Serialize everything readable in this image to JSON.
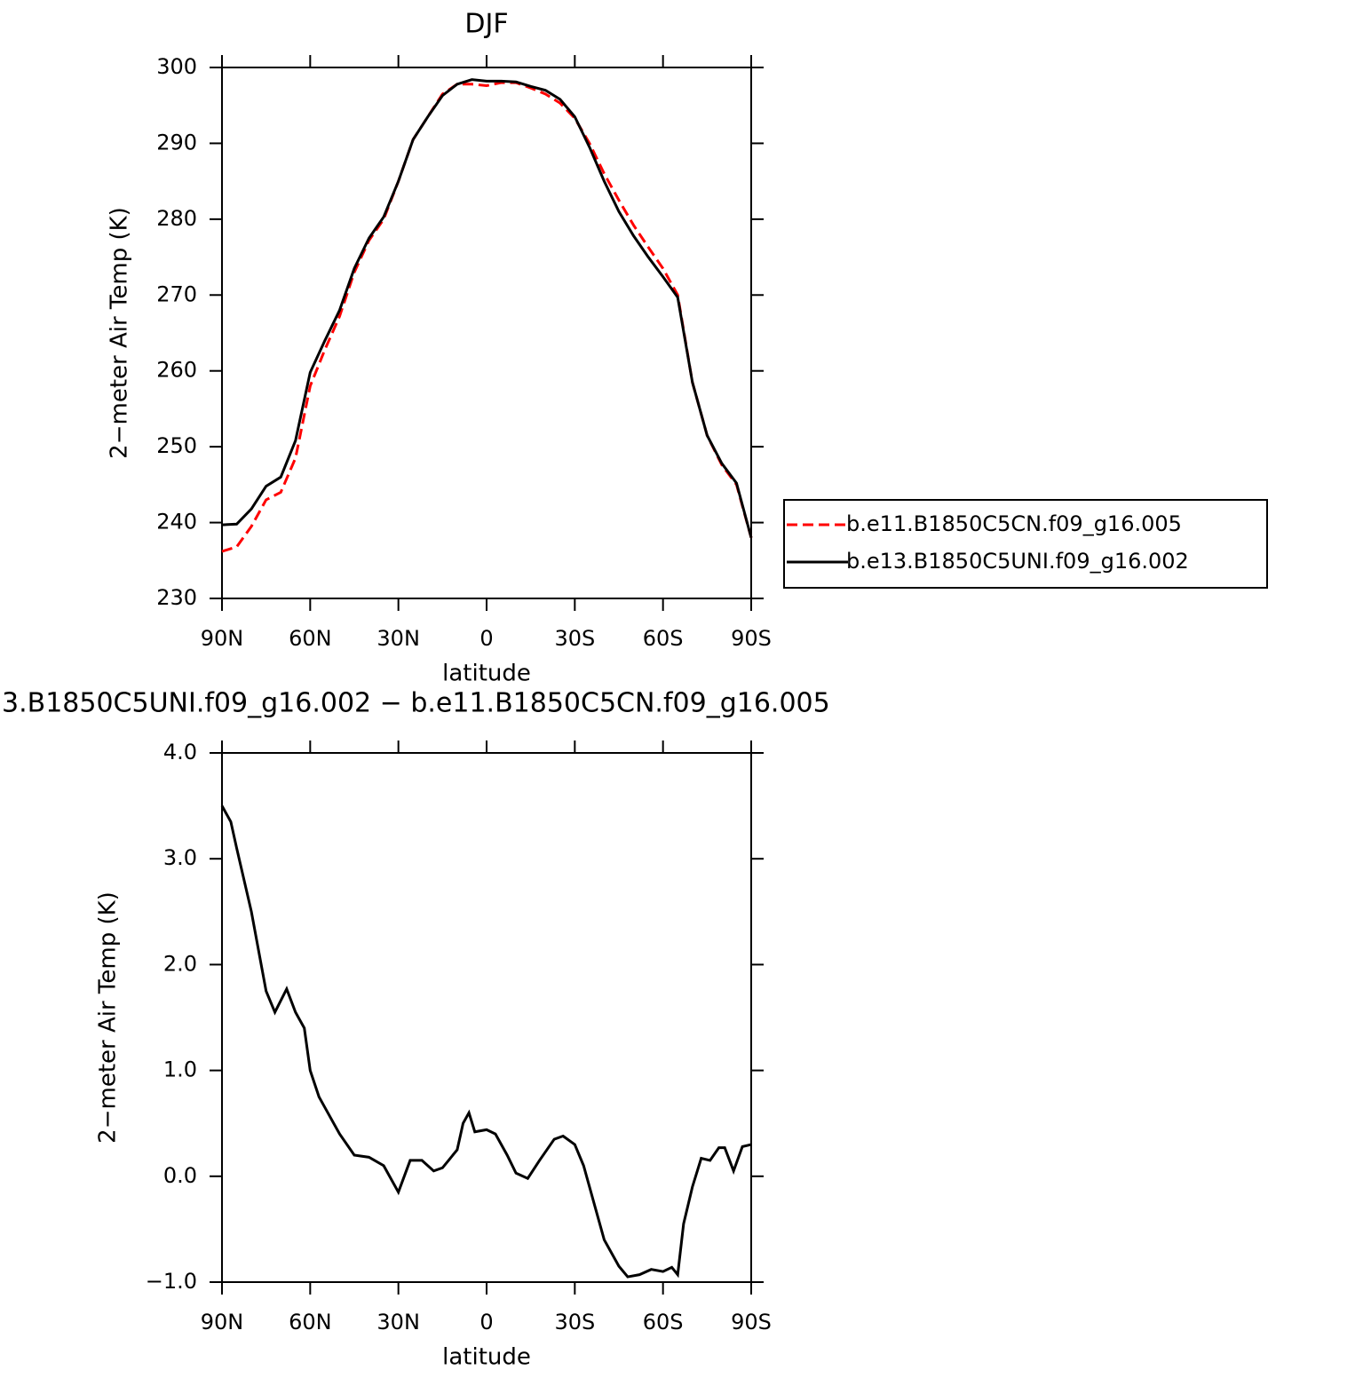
{
  "chart_data": [
    {
      "type": "line",
      "title": "DJF",
      "xlabel": "latitude",
      "ylabel": "2−meter Air Temp (K)",
      "x": [
        90,
        85,
        80,
        75,
        70,
        65,
        60,
        55,
        50,
        45,
        40,
        35,
        30,
        25,
        20,
        15,
        10,
        5,
        0,
        -5,
        -10,
        -15,
        -20,
        -25,
        -30,
        -35,
        -40,
        -45,
        -50,
        -55,
        -60,
        -65,
        -70,
        -75,
        -80,
        -85,
        -90
      ],
      "series": [
        {
          "name": "b.e11.B1850C5CN.f09_g16.005",
          "color": "#ff0000",
          "dash": true,
          "values": [
            236.2,
            236.8,
            239.5,
            243,
            244,
            248.5,
            258,
            262.8,
            267.2,
            273,
            277.2,
            280,
            285,
            290.5,
            293.5,
            296.5,
            297.8,
            297.8,
            297.6,
            298,
            298,
            297.3,
            296.5,
            295.3,
            293.3,
            290,
            286,
            282.5,
            279.2,
            276.3,
            273.5,
            270,
            258.5,
            251.5,
            247.6,
            245,
            238
          ]
        },
        {
          "name": "b.e13.B1850C5UNI.f09_g16.002",
          "color": "#000000",
          "dash": false,
          "values": [
            239.7,
            239.8,
            241.8,
            244.8,
            246,
            250.8,
            259.8,
            264,
            268,
            273.5,
            277.5,
            280.3,
            285,
            290.5,
            293.5,
            296.3,
            297.8,
            298.4,
            298.2,
            298.2,
            298.1,
            297.5,
            297,
            295.8,
            293.5,
            289.5,
            285,
            281,
            277.8,
            275,
            272.4,
            269.7,
            258.5,
            251.5,
            247.8,
            245.2,
            238
          ]
        }
      ],
      "xlim": [
        90,
        -90
      ],
      "xticks": [
        {
          "value": 90,
          "label": "90N"
        },
        {
          "value": 60,
          "label": "60N"
        },
        {
          "value": 30,
          "label": "30N"
        },
        0,
        {
          "value": -30,
          "label": "30S"
        },
        {
          "value": -60,
          "label": "60S"
        },
        {
          "value": -90,
          "label": "90S"
        }
      ],
      "ylim": [
        230,
        300
      ],
      "yticks": [
        230,
        240,
        250,
        260,
        270,
        280,
        290,
        300
      ],
      "legend": "right"
    },
    {
      "type": "line",
      "title": "3.B1850C5UNI.f09_g16.002 − b.e11.B1850C5CN.f09_g16.005",
      "xlabel": "latitude",
      "ylabel": "2−meter Air Temp (K)",
      "x": [
        90,
        87,
        85,
        80,
        75,
        72,
        68,
        65,
        62,
        60,
        57,
        55,
        50,
        45,
        40,
        35,
        30,
        26,
        22,
        18,
        15,
        10,
        8,
        6,
        4,
        0,
        -3,
        -7,
        -10,
        -14,
        -18,
        -23,
        -26,
        -30,
        -33,
        -37,
        -40,
        -45,
        -48,
        -52,
        -56,
        -60,
        -63,
        -65,
        -67,
        -70,
        -73,
        -76,
        -79,
        -81,
        -84,
        -87,
        -90
      ],
      "color": "#000000",
      "values": [
        3.5,
        3.35,
        3.1,
        2.5,
        1.75,
        1.55,
        1.77,
        1.55,
        1.4,
        1.0,
        0.75,
        0.65,
        0.4,
        0.2,
        0.18,
        0.1,
        -0.15,
        0.15,
        0.15,
        0.05,
        0.08,
        0.25,
        0.5,
        0.6,
        0.42,
        0.44,
        0.4,
        0.2,
        0.03,
        -0.02,
        0.15,
        0.35,
        0.38,
        0.3,
        0.1,
        -0.3,
        -0.6,
        -0.85,
        -0.95,
        -0.93,
        -0.88,
        -0.9,
        -0.86,
        -0.93,
        -0.45,
        -0.1,
        0.17,
        0.15,
        0.27,
        0.27,
        0.05,
        0.28,
        0.3
      ],
      "xlim": [
        90,
        -90
      ],
      "xticks": [
        {
          "value": 90,
          "label": "90N"
        },
        {
          "value": 60,
          "label": "60N"
        },
        {
          "value": 30,
          "label": "30N"
        },
        0,
        {
          "value": -30,
          "label": "30S"
        },
        {
          "value": -60,
          "label": "60S"
        },
        {
          "value": -90,
          "label": "90S"
        }
      ],
      "ylim": [
        -1,
        4
      ],
      "yticks": [
        {
          "value": -1,
          "label": "−1.0"
        },
        {
          "value": 0,
          "label": "0.0"
        },
        {
          "value": 1,
          "label": "1.0"
        },
        {
          "value": 2,
          "label": "2.0"
        },
        {
          "value": 3,
          "label": "3.0"
        },
        {
          "value": 4,
          "label": "4.0"
        }
      ]
    }
  ]
}
